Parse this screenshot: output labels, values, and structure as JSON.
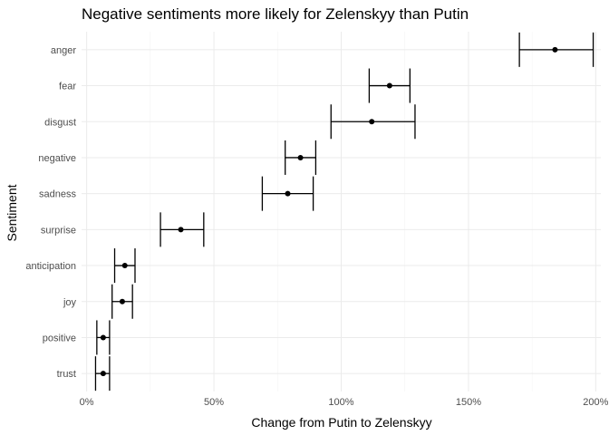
{
  "chart_data": {
    "type": "scatter",
    "title": "Negative sentiments more likely for Zelenskyy than Putin",
    "xlabel": "Change from Putin to Zelenskyy",
    "ylabel": "Sentiment",
    "xlim": [
      -2,
      202
    ],
    "x_ticks": [
      0,
      50,
      100,
      150,
      200
    ],
    "x_tick_labels": [
      "0%",
      "50%",
      "100%",
      "150%",
      "200%"
    ],
    "grid": true,
    "legend": "none",
    "categories": [
      "anger",
      "fear",
      "disgust",
      "negative",
      "sadness",
      "surprise",
      "anticipation",
      "joy",
      "positive",
      "trust"
    ],
    "points": [
      {
        "category": "anger",
        "estimate": 184,
        "low": 170,
        "high": 199
      },
      {
        "category": "fear",
        "estimate": 119,
        "low": 111,
        "high": 127
      },
      {
        "category": "disgust",
        "estimate": 112,
        "low": 96,
        "high": 129
      },
      {
        "category": "negative",
        "estimate": 84,
        "low": 78,
        "high": 90
      },
      {
        "category": "sadness",
        "estimate": 79,
        "low": 69,
        "high": 89
      },
      {
        "category": "surprise",
        "estimate": 37,
        "low": 29,
        "high": 46
      },
      {
        "category": "anticipation",
        "estimate": 15,
        "low": 11,
        "high": 19
      },
      {
        "category": "joy",
        "estimate": 14,
        "low": 10,
        "high": 18
      },
      {
        "category": "positive",
        "estimate": 6.5,
        "low": 4,
        "high": 9
      },
      {
        "category": "trust",
        "estimate": 6.5,
        "low": 3.5,
        "high": 9
      }
    ]
  }
}
